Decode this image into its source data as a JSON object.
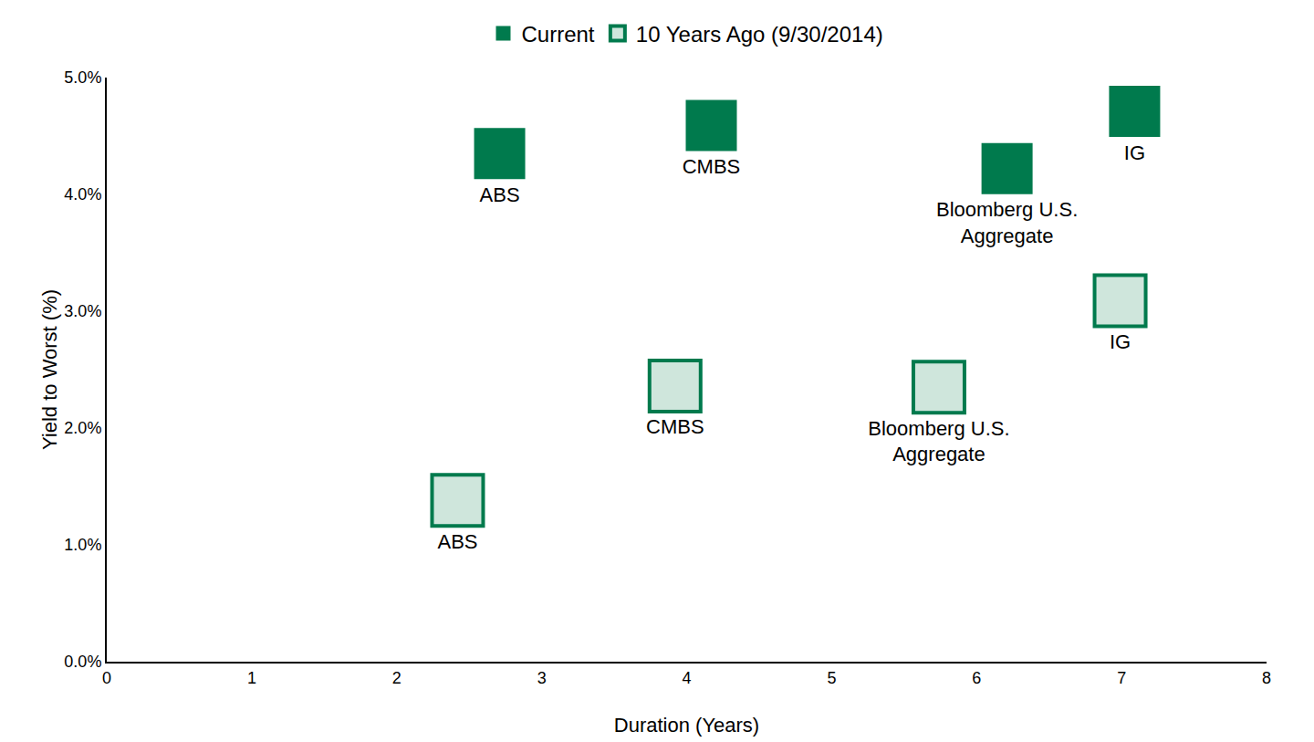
{
  "chart_data": {
    "type": "scatter",
    "x_label": "Duration (Years)",
    "y_label": "Yield to Worst (%)",
    "xlim": [
      0,
      8
    ],
    "xticks": [
      0,
      1,
      2,
      3,
      4,
      5,
      6,
      7,
      8
    ],
    "ylim": [
      0,
      5
    ],
    "yticks": [
      {
        "value": 0,
        "label": "0.0%"
      },
      {
        "value": 1,
        "label": "1.0%"
      },
      {
        "value": 2,
        "label": "2.0%"
      },
      {
        "value": 3,
        "label": "3.0%"
      },
      {
        "value": 4,
        "label": "4.0%"
      },
      {
        "value": 5,
        "label": "5.0%"
      }
    ],
    "grid": false,
    "legend": "top",
    "marker": "square",
    "series": [
      {
        "name": "Current",
        "color": "#007a4d",
        "labels": [
          "ABS",
          "CMBS",
          "Bloomberg U.S. Aggregate",
          "IG"
        ],
        "x": [
          2.71,
          4.17,
          6.21,
          7.09
        ],
        "values": [
          4.35,
          4.59,
          4.22,
          4.71
        ]
      },
      {
        "name": "10 Years Ago (9/30/2014)",
        "color": "#cfe6dc",
        "labels": [
          "ABS",
          "CMBS",
          "Bloomberg U.S. Aggregate",
          "IG"
        ],
        "x": [
          2.42,
          3.92,
          5.74,
          6.99
        ],
        "values": [
          1.38,
          2.36,
          2.35,
          3.09
        ]
      }
    ]
  }
}
